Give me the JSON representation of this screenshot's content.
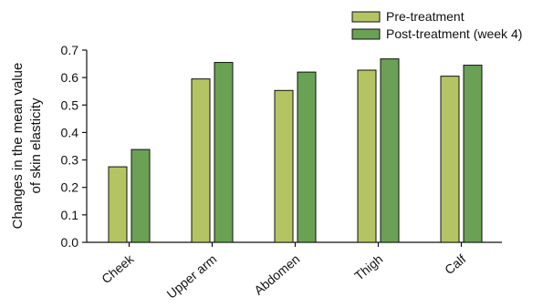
{
  "chart_data": {
    "type": "bar",
    "categories": [
      "Cheek",
      "Upper arm",
      "Abdomen",
      "Thigh",
      "Calf"
    ],
    "series": [
      {
        "name": "Pre-treatment",
        "color": "#b5c463",
        "values": [
          0.275,
          0.595,
          0.553,
          0.627,
          0.605
        ]
      },
      {
        "name": "Post-treatment (week 4)",
        "color": "#6aa154",
        "values": [
          0.338,
          0.655,
          0.62,
          0.668,
          0.645
        ]
      }
    ],
    "ylabel_line1": "Changes in the mean value",
    "ylabel_line2": "of skin elasticity",
    "ylim": [
      0,
      0.7
    ],
    "yticks": [
      "0.0",
      "0.1",
      "0.2",
      "0.3",
      "0.4",
      "0.5",
      "0.6",
      "0.7"
    ],
    "legend_position": "top-right",
    "grid": false
  }
}
